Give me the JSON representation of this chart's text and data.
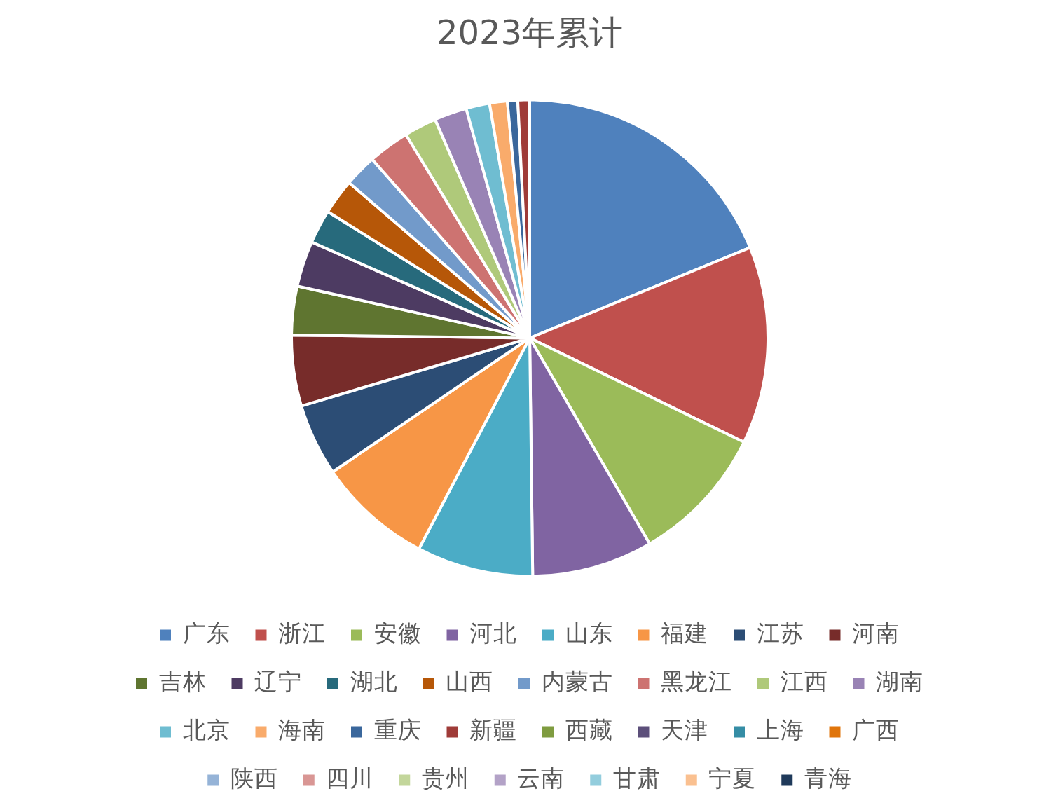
{
  "chart_data": {
    "type": "pie",
    "title": "2023年累计",
    "categories": [
      "广东",
      "浙江",
      "安徽",
      "河北",
      "山东",
      "福建",
      "江苏",
      "河南",
      "吉林",
      "辽宁",
      "湖北",
      "山西",
      "内蒙古",
      "黑龙江",
      "江西",
      "湖南",
      "北京",
      "海南",
      "重庆",
      "新疆",
      "西藏",
      "天津",
      "上海",
      "广西",
      "陕西",
      "四川",
      "贵州",
      "云南",
      "甘肃",
      "宁夏",
      "青海"
    ],
    "values": [
      18.8,
      13.4,
      9.4,
      8.2,
      7.9,
      7.8,
      4.9,
      4.8,
      3.3,
      3.1,
      2.3,
      2.4,
      2.2,
      2.8,
      2.2,
      2.2,
      1.6,
      1.2,
      0.7,
      0.8,
      0,
      0,
      0,
      0,
      0,
      0,
      0,
      0,
      0,
      0,
      0
    ],
    "colors": [
      "#4f81bd",
      "#c0504d",
      "#9bbb59",
      "#8064a2",
      "#4bacc6",
      "#f79646",
      "#2c4d75",
      "#772c2a",
      "#5f7530",
      "#4d3b62",
      "#276a7c",
      "#b65708",
      "#729aca",
      "#cd7371",
      "#afc97a",
      "#9983b5",
      "#6fbdd1",
      "#f9ab6b",
      "#3a679c",
      "#9f3b38",
      "#7f9c40",
      "#5c4f7a",
      "#358da5",
      "#e0750b",
      "#95b3d7",
      "#d99694",
      "#c3d69b",
      "#b3a2c7",
      "#93cddd",
      "#fac090",
      "#1f3a5a"
    ],
    "legend": "bottom"
  }
}
